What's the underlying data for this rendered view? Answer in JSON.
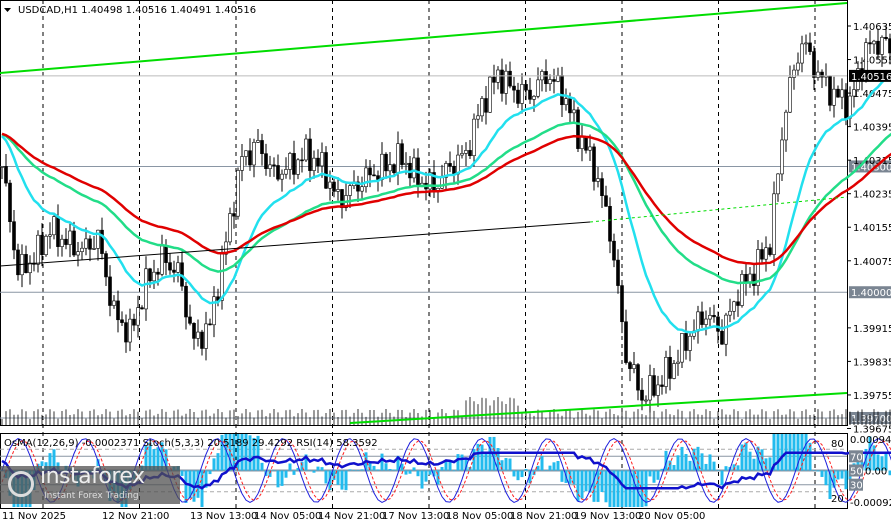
{
  "header": {
    "symbol": "USDCAD,H1",
    "ohlc": "1.40498 1.40516 1.40491 1.40516"
  },
  "indicator_header": "OsMA(12,26,9) -0.0002371  Stoch(5,3,3) 20.5189 29.4292  RSI(14) 58.3592",
  "colors": {
    "up_channel": "#00dd00",
    "ma_red": "#e00000",
    "ma_green": "#22dd88",
    "ma_cyan": "#22e0ee",
    "osma": "#22bbee",
    "stoch_main": "#2020dd",
    "stoch_signal": "#ff2020",
    "rsi": "#1010cc",
    "price_badge": "#000000",
    "level_badge": "#7a8592"
  },
  "chart_data": {
    "type": "candlestick",
    "title": "USDCAD,H1",
    "price_axis": {
      "ticks": [
        "1.40635",
        "1.40555",
        "1.40475",
        "1.40395",
        "1.40315",
        "1.40235",
        "1.40155",
        "1.40075",
        "1.39915",
        "1.39835",
        "1.39755",
        "1.39675"
      ],
      "range": [
        1.3966,
        1.4072
      ]
    },
    "current_price": "1.40516",
    "levels": [
      "1.40300",
      "1.40000",
      "1.39700"
    ],
    "time_axis": [
      "11 Nov 2025",
      "12 Nov 21:00",
      "13 Nov 13:00",
      "14 Nov 05:00",
      "14 Nov 21:00",
      "17 Nov 13:00",
      "18 Nov 05:00",
      "18 Nov 21:00",
      "19 Nov 13:00",
      "20 Nov 05:00"
    ],
    "close_samples_every_4_bars": [
      1.403,
      1.4005,
      1.4008,
      1.4015,
      1.4012,
      1.401,
      1.4013,
      1.3995,
      1.399,
      1.4002,
      1.4008,
      1.4005,
      1.3988,
      1.3992,
      1.4012,
      1.4032,
      1.4035,
      1.4028,
      1.403,
      1.4033,
      1.403,
      1.4022,
      1.4025,
      1.4028,
      1.403,
      1.4032,
      1.4027,
      1.4025,
      1.403,
      1.4033,
      1.4045,
      1.4052,
      1.4048,
      1.4047,
      1.4052,
      1.4048,
      1.4038,
      1.403,
      1.4015,
      1.3985,
      1.3975,
      1.3978,
      1.3983,
      1.399,
      1.3995,
      1.399,
      1.4,
      1.4005,
      1.4012,
      1.4045,
      1.406,
      1.4052,
      1.4047,
      1.4045,
      1.4058,
      1.406,
      1.4055,
      1.4052
    ],
    "indicator_axis": {
      "osma_max": "0.000945",
      "osma_min": "-0.000921",
      "osma_zero": "0.00",
      "levels": [
        "80",
        "70",
        "50",
        "30",
        "20"
      ]
    }
  }
}
